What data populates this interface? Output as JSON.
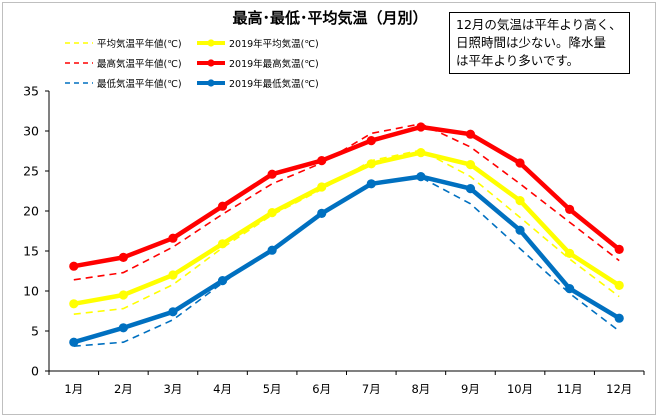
{
  "note": {
    "lines": [
      "12月の気温は平年より高く、",
      "日照時間は少ない。降水量",
      "は平年より多いです。"
    ]
  },
  "chart_data": {
    "type": "line",
    "title": "最高･最低･平均気温（月別）",
    "categories": [
      "1月",
      "2月",
      "3月",
      "4月",
      "5月",
      "6月",
      "7月",
      "8月",
      "9月",
      "10月",
      "11月",
      "12月"
    ],
    "ylim": [
      0,
      35
    ],
    "yticks": [
      "0",
      "5",
      "10",
      "15",
      "20",
      "25",
      "30",
      "35"
    ],
    "grid": false,
    "series": [
      {
        "name": "平均気温平年値(℃)",
        "style": "dashed",
        "color": "#ffff00",
        "values": [
          7.1,
          7.8,
          10.8,
          15.4,
          19.5,
          22.7,
          26.3,
          27.6,
          24.3,
          19.2,
          14.0,
          9.3
        ]
      },
      {
        "name": "2019年平均気温(℃)",
        "style": "solid",
        "color": "#ffff00",
        "values": [
          8.4,
          9.5,
          12.0,
          15.9,
          19.8,
          23.0,
          25.9,
          27.3,
          25.8,
          21.3,
          14.7,
          10.7
        ]
      },
      {
        "name": "最高気温平年値(℃)",
        "style": "dashed",
        "color": "#ff0000",
        "values": [
          11.4,
          12.3,
          15.5,
          19.6,
          23.4,
          26.0,
          29.7,
          30.9,
          28.0,
          23.4,
          18.6,
          13.8
        ]
      },
      {
        "name": "2019年最高気温(℃)",
        "style": "solid",
        "color": "#ff0000",
        "values": [
          13.1,
          14.2,
          16.6,
          20.6,
          24.6,
          26.3,
          28.8,
          30.5,
          29.6,
          26.0,
          20.2,
          15.2
        ]
      },
      {
        "name": "最低気温平年値(℃)",
        "style": "dashed",
        "color": "#0070c0",
        "values": [
          3.1,
          3.6,
          6.4,
          11.0,
          15.3,
          19.5,
          23.4,
          24.2,
          20.9,
          15.3,
          9.7,
          5.0
        ]
      },
      {
        "name": "2019年最低気温(℃)",
        "style": "solid",
        "color": "#0070c0",
        "values": [
          3.6,
          5.4,
          7.4,
          11.3,
          15.1,
          19.7,
          23.4,
          24.3,
          22.8,
          17.6,
          10.3,
          6.6
        ]
      }
    ]
  }
}
